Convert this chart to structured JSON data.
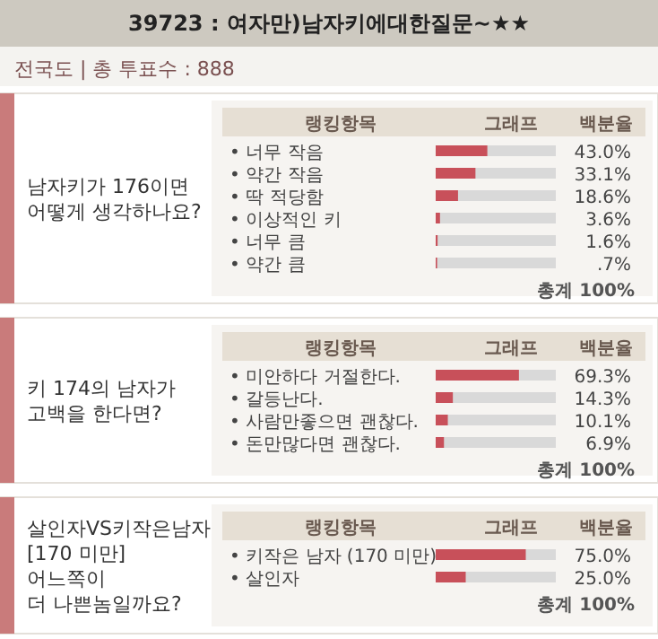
{
  "chart_data": [
    {
      "type": "bar",
      "orientation": "horizontal",
      "title": "남자키가 176이면\n어떻게 생각하나요?",
      "annotations": [
        "39723 : 여자만)남자키에대한질문~★★",
        "전국도 | 총 투표수 : 888",
        "랭킹항목",
        "그래프",
        "백분율",
        "총계 100%"
      ],
      "categories": [
        "• 너무 작음",
        "• 약간 작음",
        "• 딱 적당함",
        "• 이상적인 키",
        "• 너무 큼",
        "• 약간 큼"
      ],
      "values": [
        43.0,
        33.1,
        18.6,
        3.6,
        1.6,
        0.7
      ],
      "value_labels": [
        "43.0%",
        "33.1%",
        "18.6%",
        "3.6%",
        "1.6%",
        ".7%"
      ],
      "color": "#c8505a",
      "xlim": [
        0,
        100
      ]
    },
    {
      "type": "bar",
      "orientation": "horizontal",
      "title": "키 174의 남자가\n고백을 한다면?",
      "annotations": [
        "랭킹항목",
        "그래프",
        "백분율",
        "총계 100%"
      ],
      "categories": [
        "• 미안하다 거절한다.",
        "• 갈등난다.",
        "• 사람만좋으면 괜찮다.",
        "• 돈만많다면 괜찮다."
      ],
      "values": [
        69.3,
        14.3,
        10.1,
        6.9
      ],
      "value_labels": [
        "69.3%",
        "14.3%",
        "10.1%",
        "6.9%"
      ],
      "color": "#c8505a",
      "xlim": [
        0,
        100
      ]
    },
    {
      "type": "bar",
      "orientation": "horizontal",
      "title": "살인자VS키작은남자\n[170 미만]\n어느쪽이\n더 나쁜놈일까요?",
      "annotations": [
        "랭킹항목",
        "그래프",
        "백분율",
        "총계 100%"
      ],
      "categories": [
        "• 키작은 남자 (170 미만)",
        "• 살인자"
      ],
      "values": [
        75.0,
        25.0
      ],
      "value_labels": [
        "75.0%",
        "25.0%"
      ],
      "color": "#c8505a",
      "xlim": [
        0,
        100
      ]
    }
  ]
}
